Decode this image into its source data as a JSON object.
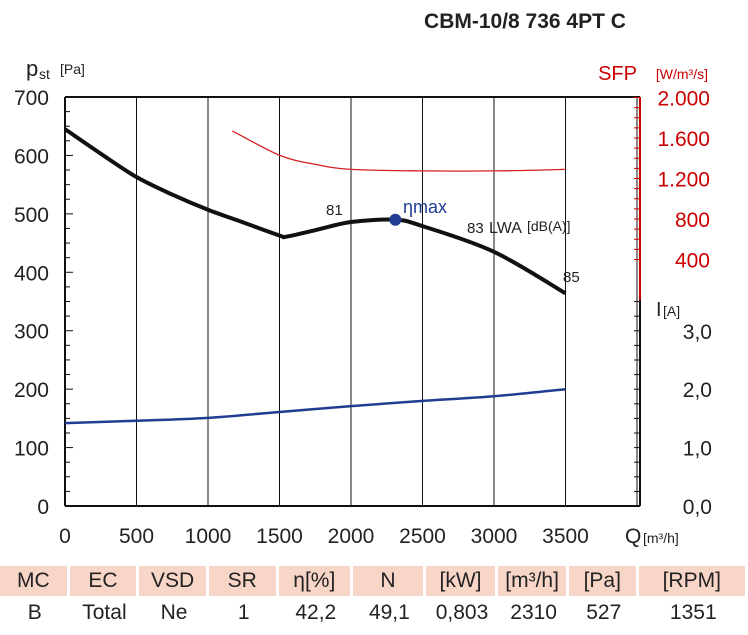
{
  "chart_data": {
    "type": "line",
    "title": "CBM-10/8 736 4PT C",
    "xlabel": "Q",
    "xunit": "[m³/h]",
    "xlim": [
      0,
      4000
    ],
    "xticks": [
      "0",
      "500",
      "1000",
      "1500",
      "2000",
      "2500",
      "3000",
      "3500"
    ],
    "ylabel": "p",
    "ylabel_sub": "st",
    "yunit": "[Pa]",
    "ylim": [
      0,
      700
    ],
    "yticks": [
      "0",
      "100",
      "200",
      "300",
      "400",
      "500",
      "600",
      "700"
    ],
    "sfp_label": "SFP",
    "sfp_unit": "[W/m³/s]",
    "sfp_ticks": [
      "400",
      "800",
      "1.200",
      "1.600",
      "2.000"
    ],
    "current_label": "I",
    "current_unit": "[A]",
    "current_ticks": [
      "0,0",
      "1,0",
      "2,0",
      "3,0"
    ],
    "series": [
      {
        "name": "pressure",
        "axis": "Pa",
        "color": "#111111",
        "x": [
          0,
          250,
          500,
          750,
          1000,
          1250,
          1500,
          1550,
          1750,
          2000,
          2310,
          2500,
          3000,
          3500
        ],
        "y": [
          645,
          603,
          563,
          533,
          507,
          485,
          463,
          461,
          472,
          486,
          490,
          479,
          435,
          364
        ]
      },
      {
        "name": "SFP",
        "axis": "W/m3/s",
        "color": "#d42020",
        "x": [
          1170,
          1500,
          1750,
          2000,
          2500,
          3000,
          3500
        ],
        "y": [
          1670,
          1430,
          1340,
          1290,
          1275,
          1275,
          1290
        ]
      },
      {
        "name": "current",
        "axis": "A",
        "color": "#1f3d91",
        "x": [
          0,
          500,
          1000,
          1500,
          2000,
          2500,
          3000,
          3500
        ],
        "y": [
          1.42,
          1.46,
          1.51,
          1.61,
          1.71,
          1.8,
          1.88,
          2.0
        ]
      }
    ],
    "annotations": {
      "eta_max": "ηmax",
      "eta_point": [
        2310,
        490
      ],
      "lwa_81": "81",
      "lwa_83": "83",
      "lwa_label": "LWA",
      "lwa_unit": "[dB(A)]",
      "lwa_85": "85"
    }
  },
  "table": {
    "headers": [
      "MC",
      "EC",
      "VSD",
      "SR",
      "η[%]",
      "N",
      "[kW]",
      "[m³/h]",
      "[Pa]",
      "[RPM]"
    ],
    "values": [
      "B",
      "Total",
      "Ne",
      "1",
      "42,2",
      "49,1",
      "0,803",
      "2310",
      "527",
      "1351"
    ]
  }
}
